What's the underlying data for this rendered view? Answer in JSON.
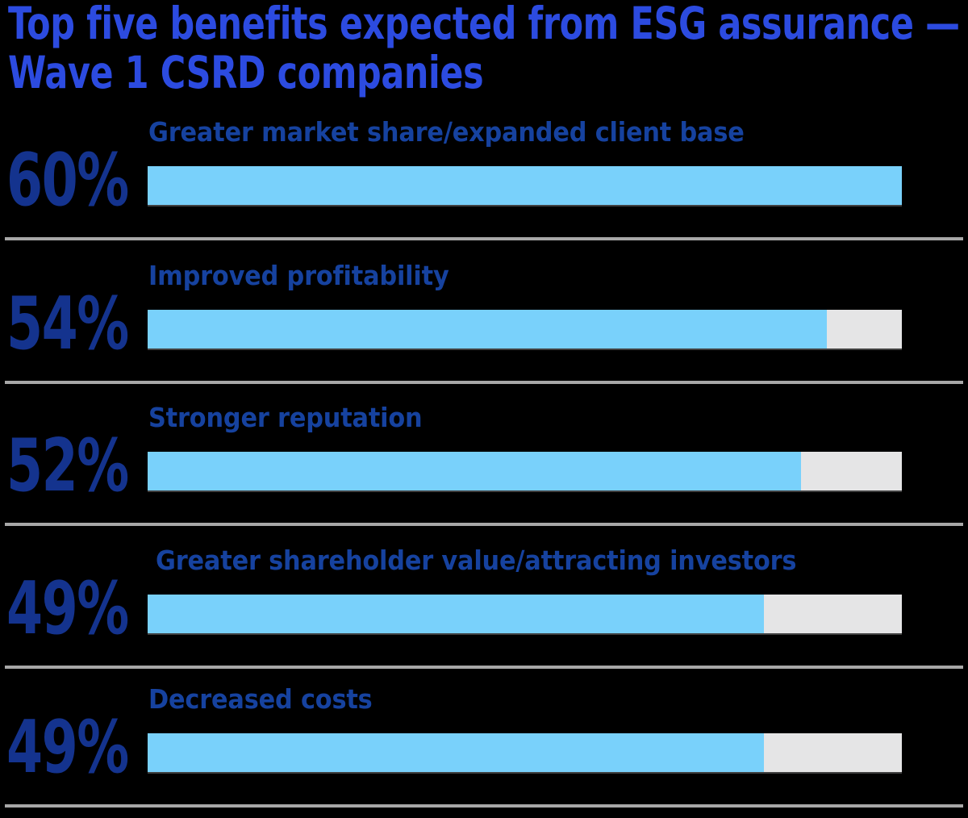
{
  "title": {
    "text": "Top five benefits expected from ESG assurance —\nWave 1 CSRD companies"
  },
  "chart_data": {
    "type": "bar",
    "orientation": "horizontal",
    "title": "Top five benefits expected from ESG assurance — Wave 1 CSRD companies",
    "categories": [
      "Greater market share/expanded client base",
      "Improved profitability",
      "Stronger reputation",
      "Greater shareholder value/attracting investors",
      "Decreased costs"
    ],
    "values": [
      60,
      54,
      52,
      49,
      49
    ],
    "value_labels": [
      "60%",
      "54%",
      "52%",
      "49%",
      "49%"
    ],
    "unit": "percent",
    "scale_max": 60,
    "xlim": [
      0,
      60
    ],
    "grid": false,
    "legend": false,
    "colors": {
      "title": "#2C4BE0",
      "value_text": "#14338E",
      "label_text": "#16429F",
      "fill": "#79D1FB",
      "track": "#E5E5E6",
      "separator": "#A7A7A7",
      "background": "#000000"
    }
  }
}
